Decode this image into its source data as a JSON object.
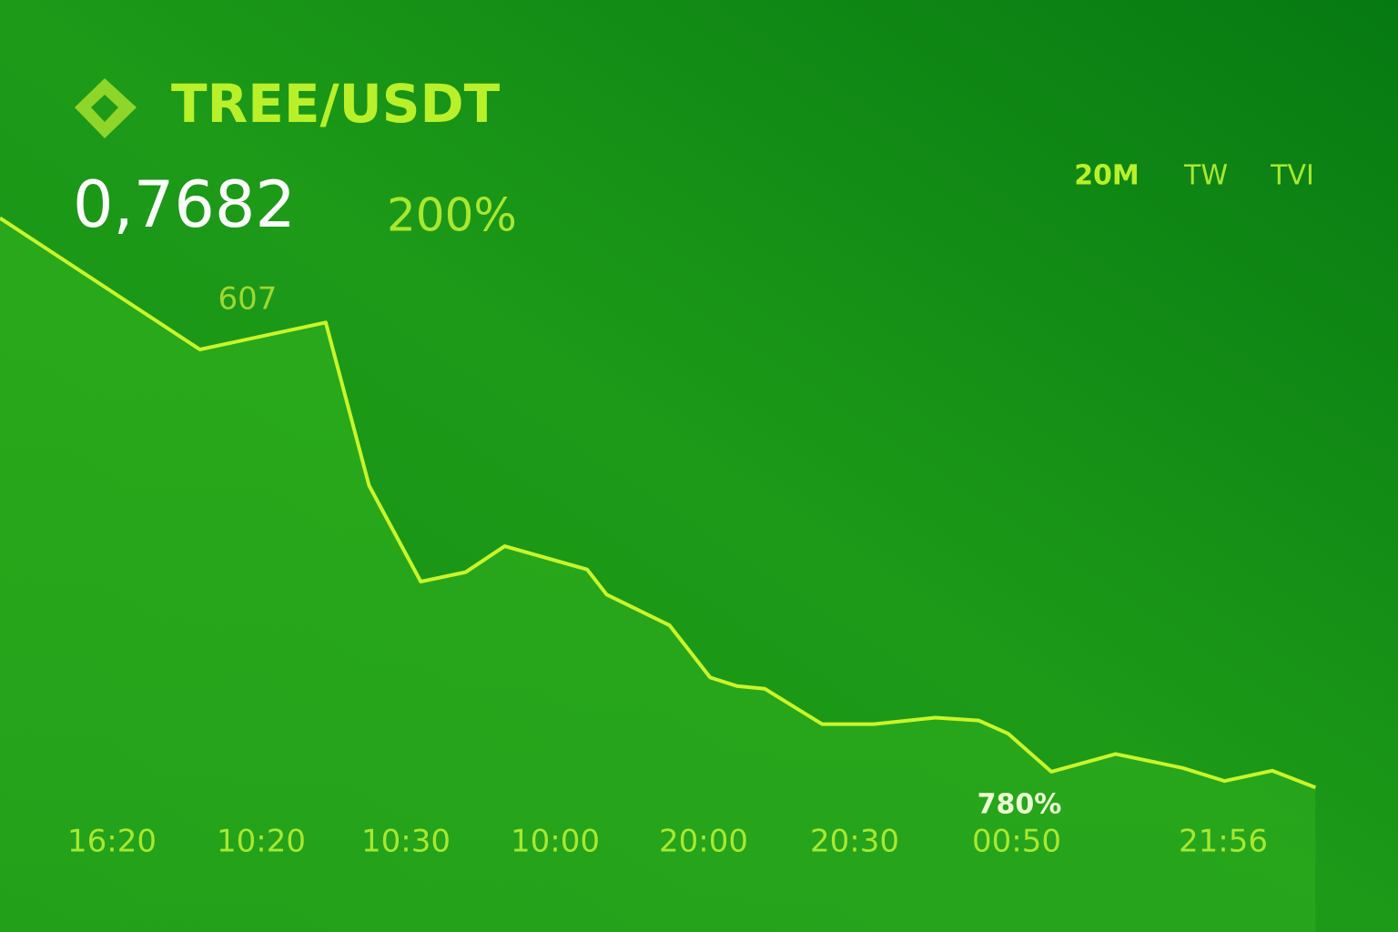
{
  "header": {
    "pair": "TREE/USDT",
    "price": "0,7682",
    "change": "200%",
    "timeframes": [
      "20M",
      "TW",
      "TVI"
    ]
  },
  "chart_data": {
    "type": "line",
    "x": [
      0,
      14.3,
      23.3,
      26.4,
      30.1,
      33.3,
      36.1,
      42,
      43.4,
      47.9,
      50.8,
      52.7,
      54.7,
      58.8,
      62.5,
      66.9,
      70,
      72.1,
      75.2,
      79.8,
      84.6,
      87.6,
      91,
      94.1
    ],
    "series": [
      {
        "color": "#c8f52a",
        "values": [
          76.6,
          62.5,
          65.4,
          47.9,
          37.6,
          38.6,
          41.4,
          38.9,
          36.2,
          32.9,
          27.3,
          26.4,
          26.1,
          22.3,
          22.3,
          23,
          22.7,
          21.3,
          17.2,
          19.1,
          17.6,
          16.2,
          17.3,
          15.5
        ]
      }
    ],
    "xlim": [
      0,
      100
    ],
    "ylim": [
      0,
      100
    ],
    "annotations": [
      "607",
      "780%"
    ],
    "categories": [
      "16:20",
      "10:20",
      "10:30",
      "10:00",
      "20:00",
      "20:30",
      "00:50",
      "21:56"
    ]
  }
}
